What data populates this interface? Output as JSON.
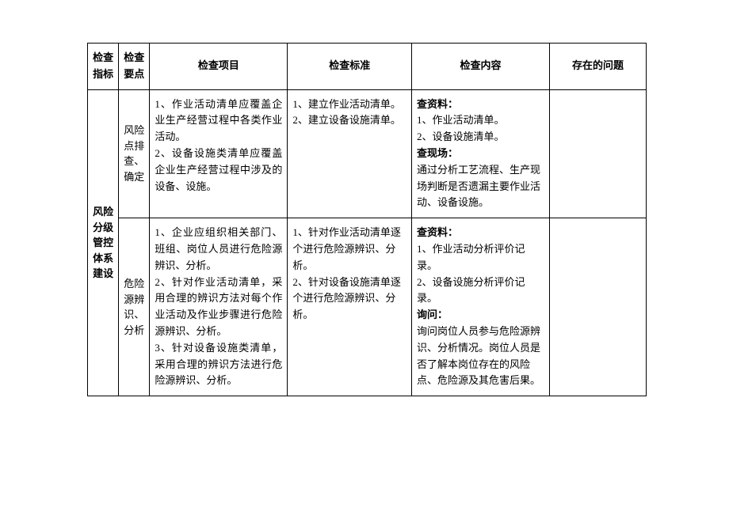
{
  "headers": {
    "col1": "检查指标",
    "col2": "检查要点",
    "col3": "检查项目",
    "col4": "检查标准",
    "col5": "检查内容",
    "col6": "存在的问题"
  },
  "indicator": "风险分级管控体系建设",
  "rows": [
    {
      "point": "风险点排查、确定",
      "project": "1、作业活动清单应覆盖企业生产经营过程中各类作业活动。\n2、设备设施类清单应覆盖企业生产经营过程中涉及的设备、设施。",
      "standard": "1、建立作业活动清单。\n2、建立设备设施清单。",
      "content_heads": [
        "查资料：",
        "查现场："
      ],
      "content_bodies": [
        "1、作业活动清单。\n2、设备设施清单。",
        "通过分析工艺流程、生产现场判断是否遗漏主要作业活动、设备设施。"
      ],
      "issue": ""
    },
    {
      "point": "危险源辨识、分析",
      "project": "1、企业应组织相关部门、班组、岗位人员进行危险源辨识、分析。\n2、针对作业活动清单，采用合理的辨识方法对每个作业活动及作业步骤进行危险源辨识、分析。\n3、针对设备设施类清单，采用合理的辨识方法进行危险源辨识、分析。",
      "standard": "1、针对作业活动清单逐个进行危险源辨识、分析。\n2、针对设备设施清单逐个进行危险源辨识、分析。",
      "content_heads": [
        "查资料：",
        "询问："
      ],
      "content_bodies": [
        "1、作业活动分析评价记录。\n2、设备设施分析评价记录。",
        "询问岗位人员参与危险源辨识、分析情况。岗位人员是否了解本岗位存在的风险点、危险源及其危害后果。"
      ],
      "issue": ""
    }
  ]
}
